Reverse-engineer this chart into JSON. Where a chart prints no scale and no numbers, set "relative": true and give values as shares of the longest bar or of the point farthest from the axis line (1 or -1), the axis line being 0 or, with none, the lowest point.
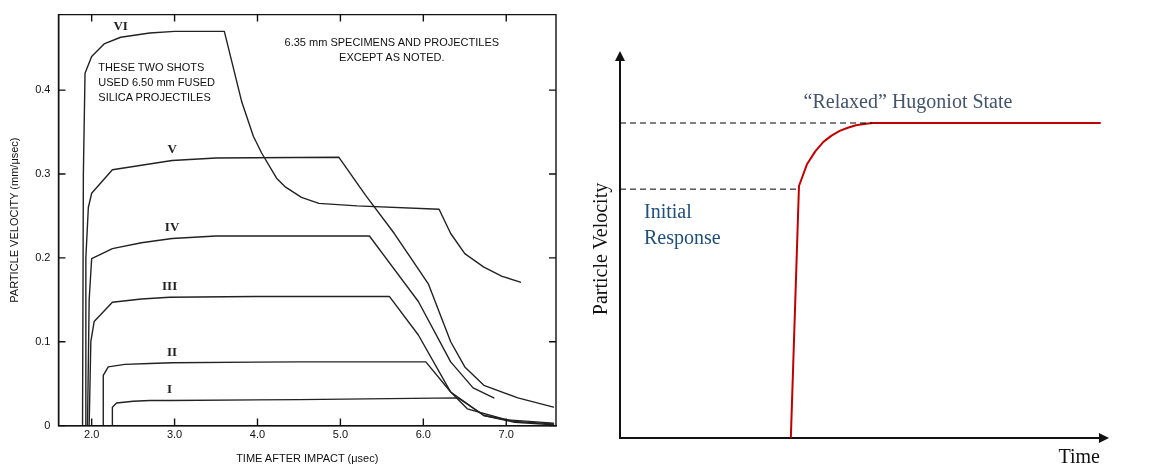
{
  "chart_data": [
    {
      "type": "line",
      "xlabel": "TIME AFTER IMPACT (μsec)",
      "ylabel": "PARTICLE VELOCITY (mm/μsec)",
      "xlim": [
        1.6,
        7.6
      ],
      "ylim": [
        0,
        0.49
      ],
      "xticks": [
        {
          "value": 2,
          "label": "2.0"
        },
        {
          "value": 3,
          "label": "3.0"
        },
        {
          "value": 4,
          "label": "4.0"
        },
        {
          "value": 5,
          "label": "5.0"
        },
        {
          "value": 6,
          "label": "6.0"
        },
        {
          "value": 7,
          "label": "7.0"
        }
      ],
      "yticks": [
        0,
        0.1,
        0.2,
        0.3,
        0.4
      ],
      "grid": false,
      "legend": false,
      "marker": "none",
      "line_style": "solid",
      "annotations": [
        "6.35 mm SPECIMENS AND PROJECTILES\nEXCEPT AS NOTED.",
        "THESE TWO SHOTS\nUSED 6.50 mm FUSED\nSILICA PROJECTILES"
      ],
      "series": [
        {
          "name": "VI",
          "color": "#222222",
          "x": [
            1.89,
            1.9,
            1.92,
            2.0,
            2.15,
            2.35,
            2.7,
            3.0,
            3.6,
            3.7,
            3.81,
            3.95,
            4.05,
            4.23,
            4.33,
            4.53,
            4.74,
            5.2,
            6.19,
            6.33,
            6.5,
            6.73,
            6.95,
            7.17
          ],
          "values": [
            0,
            0.3,
            0.42,
            0.44,
            0.455,
            0.463,
            0.468,
            0.47,
            0.47,
            0.43,
            0.386,
            0.345,
            0.325,
            0.295,
            0.285,
            0.272,
            0.265,
            0.262,
            0.258,
            0.229,
            0.205,
            0.189,
            0.178,
            0.171
          ]
        },
        {
          "name": "V",
          "color": "#222222",
          "x": [
            1.92,
            1.93,
            1.96,
            2.0,
            2.25,
            2.97,
            3.5,
            4.98,
            5.3,
            5.65,
            6.06,
            6.33,
            6.5,
            6.73,
            7.14,
            7.57
          ],
          "values": [
            0,
            0.2,
            0.26,
            0.277,
            0.305,
            0.316,
            0.319,
            0.32,
            0.275,
            0.229,
            0.169,
            0.1,
            0.07,
            0.048,
            0.033,
            0.022
          ]
        },
        {
          "name": "IV",
          "color": "#222222",
          "x": [
            1.95,
            1.97,
            2.0,
            2.25,
            2.6,
            2.97,
            3.5,
            5.35,
            5.94,
            6.33,
            6.6,
            6.85
          ],
          "values": [
            0,
            0.15,
            0.199,
            0.211,
            0.218,
            0.223,
            0.226,
            0.226,
            0.148,
            0.076,
            0.045,
            0.033
          ]
        },
        {
          "name": "III",
          "color": "#222222",
          "x": [
            1.97,
            1.99,
            2.03,
            2.25,
            2.6,
            2.94,
            4.0,
            5.59,
            5.94,
            6.33,
            6.73,
            7.1,
            7.57
          ],
          "values": [
            0,
            0.1,
            0.124,
            0.147,
            0.151,
            0.153,
            0.154,
            0.154,
            0.108,
            0.04,
            0.012,
            0.005,
            0.002
          ]
        },
        {
          "name": "II",
          "color": "#222222",
          "x": [
            2.14,
            2.14,
            2.2,
            2.4,
            2.7,
            2.97,
            4.5,
            6.03,
            6.33,
            6.53,
            7.0,
            7.57
          ],
          "values": [
            0,
            0.06,
            0.07,
            0.073,
            0.074,
            0.075,
            0.076,
            0.076,
            0.04,
            0.02,
            0.007,
            0.003
          ]
        },
        {
          "name": "I",
          "color": "#222222",
          "x": [
            2.25,
            2.25,
            2.3,
            2.5,
            2.7,
            2.94,
            4.5,
            6.42,
            6.73,
            7.1,
            7.57
          ],
          "values": [
            0,
            0.022,
            0.027,
            0.029,
            0.03,
            0.03,
            0.031,
            0.033,
            0.012,
            0.004,
            0.001
          ]
        }
      ]
    },
    {
      "type": "line",
      "relative": true,
      "xlabel": "Time",
      "ylabel": "Particle Velocity",
      "tick_labels": false,
      "grid": false,
      "legend": false,
      "marker": "none",
      "line_style": "solid",
      "categories": [
        null,
        null,
        null,
        null,
        null,
        null,
        null,
        null,
        null,
        null,
        null,
        null,
        null,
        null,
        null,
        null,
        null,
        null,
        null,
        null,
        null,
        null,
        null,
        null,
        null,
        null,
        null,
        null,
        null,
        null,
        null,
        null,
        null,
        null,
        null,
        null,
        null,
        null,
        null,
        null,
        null,
        null,
        null,
        null,
        null,
        null,
        null,
        null,
        null,
        null,
        null,
        null,
        null,
        null,
        null,
        null,
        null,
        null,
        null,
        null
      ],
      "ref_lines": [
        {
          "axis": "y",
          "value": 1,
          "label": "“Relaxed” Hugoniot State",
          "color": "#000000",
          "line_style": "dashed"
        },
        {
          "axis": "y",
          "value": 0.79,
          "label": "Initial\nResponse",
          "color": "#000000",
          "line_style": "dashed"
        }
      ],
      "series": [
        {
          "color": "#c00000",
          "values": [
            null,
            null,
            null,
            null,
            null,
            null,
            null,
            null,
            null,
            null,
            null,
            null,
            null,
            null,
            null,
            null,
            null,
            null,
            null,
            null,
            null,
            0,
            0.8,
            0.87,
            0.91,
            0.94,
            0.96,
            0.975,
            0.985,
            0.993,
            0.997,
            1,
            1,
            1,
            1,
            1,
            1,
            1,
            1,
            1,
            1,
            1,
            1,
            1,
            1,
            1,
            1,
            1,
            1,
            1,
            1,
            1,
            1,
            1,
            1,
            1,
            1,
            1,
            1,
            1
          ]
        }
      ]
    }
  ]
}
